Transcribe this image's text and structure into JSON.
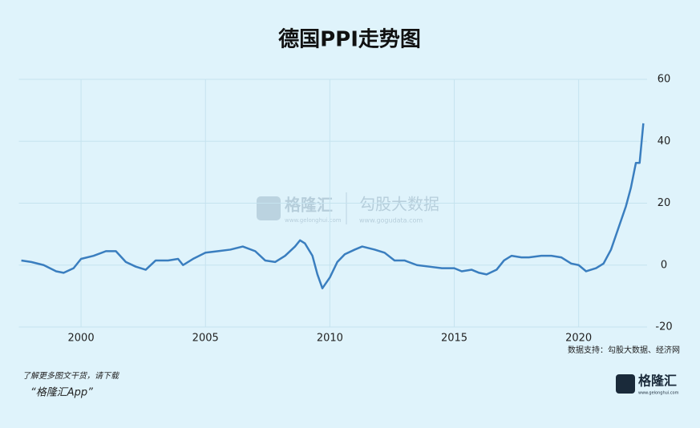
{
  "chart_data": {
    "type": "line",
    "title": "德国PPI走势图",
    "x": [
      1997.6,
      1998.0,
      1998.5,
      1999.0,
      1999.3,
      1999.7,
      2000.0,
      2000.5,
      2001.0,
      2001.4,
      2001.8,
      2002.2,
      2002.6,
      2003.0,
      2003.5,
      2003.9,
      2004.1,
      2004.5,
      2005.0,
      2005.5,
      2006.0,
      2006.5,
      2007.0,
      2007.4,
      2007.8,
      2008.2,
      2008.6,
      2008.8,
      2009.0,
      2009.3,
      2009.5,
      2009.7,
      2010.0,
      2010.3,
      2010.6,
      2011.0,
      2011.3,
      2011.8,
      2012.2,
      2012.6,
      2013.0,
      2013.5,
      2014.0,
      2014.5,
      2015.0,
      2015.3,
      2015.7,
      2016.0,
      2016.3,
      2016.7,
      2017.0,
      2017.3,
      2017.7,
      2018.0,
      2018.5,
      2018.9,
      2019.3,
      2019.7,
      2020.0,
      2020.3,
      2020.7,
      2021.0,
      2021.3,
      2021.6,
      2021.9,
      2022.1,
      2022.3,
      2022.45,
      2022.6
    ],
    "series": [
      {
        "color": "#3a7ebf",
        "values": [
          1.5,
          1.0,
          0,
          -2,
          -2.5,
          -1,
          2,
          3,
          4.5,
          4.5,
          1,
          -0.5,
          -1.5,
          1.5,
          1.5,
          2,
          0,
          2,
          4,
          4.5,
          5,
          6,
          4.5,
          1.5,
          1,
          3,
          6,
          8,
          7,
          3,
          -3,
          -7.5,
          -4,
          1,
          3.5,
          5,
          6,
          5,
          4,
          1.5,
          1.5,
          0,
          -0.5,
          -1,
          -1,
          -2,
          -1.5,
          -2.5,
          -3,
          -1.5,
          1.5,
          3,
          2.5,
          2.5,
          3,
          3,
          2.5,
          0.5,
          0,
          -2,
          -1,
          0.5,
          5,
          12,
          19,
          25,
          33,
          33,
          45.8
        ]
      }
    ],
    "xlim": [
      1997.5,
      2022.75
    ],
    "xticks": [
      2000,
      2005,
      2010,
      2015,
      2020
    ],
    "ylim": [
      -20,
      60
    ],
    "yticks": [
      -20,
      0,
      20,
      40,
      60
    ],
    "grid": true,
    "source": "数据支持：勾股大数据、经济网"
  },
  "watermark": {
    "brand": "格隆汇",
    "brand_url": "www.gelonghui.com",
    "partner": "勾股大数据",
    "partner_url": "www.gogudata.com"
  },
  "footer": {
    "line1": "了解更多图文干货，请下载",
    "line2": "“格隆汇App”",
    "logo": "格隆汇",
    "logo_url": "www.gelonghui.com"
  }
}
